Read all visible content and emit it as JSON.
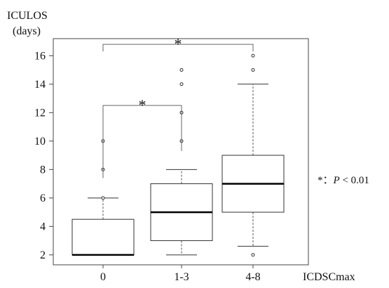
{
  "chart_data": {
    "type": "box",
    "ylabel_line1": "ICULOS",
    "ylabel_line2": "(days)",
    "xlabel": "ICDSCmax",
    "ylim": [
      1.3,
      17.2
    ],
    "yticks": [
      2,
      4,
      6,
      8,
      10,
      12,
      14,
      16
    ],
    "grid": false,
    "categories": [
      "0",
      "1-3",
      "4-8"
    ],
    "boxes": [
      {
        "category": "0",
        "whisker_low": 2,
        "q1": 2,
        "median": 2,
        "q3": 4.5,
        "whisker_high": 6,
        "outliers": [
          6,
          8,
          10
        ]
      },
      {
        "category": "1-3",
        "whisker_low": 2,
        "q1": 3,
        "median": 5,
        "q3": 7,
        "whisker_high": 8,
        "outliers": [
          10,
          12,
          14,
          15
        ]
      },
      {
        "category": "4-8",
        "whisker_low": 2.6,
        "q1": 5,
        "median": 7,
        "q3": 9,
        "whisker_high": 14,
        "outliers": [
          2,
          15,
          16
        ]
      }
    ],
    "significance": [
      {
        "from": "0",
        "to": "1-3",
        "label": "*",
        "low_from": 7.4,
        "low_to": 9.3,
        "top": 12.5
      },
      {
        "from": "0",
        "to": "4-8",
        "label": "*",
        "low_from": 16.3,
        "low_to": 16.3,
        "top": 16.8
      }
    ],
    "legend_note": {
      "star": "*",
      "colon": "：",
      "p": "P",
      "rest": " < 0.01"
    }
  }
}
